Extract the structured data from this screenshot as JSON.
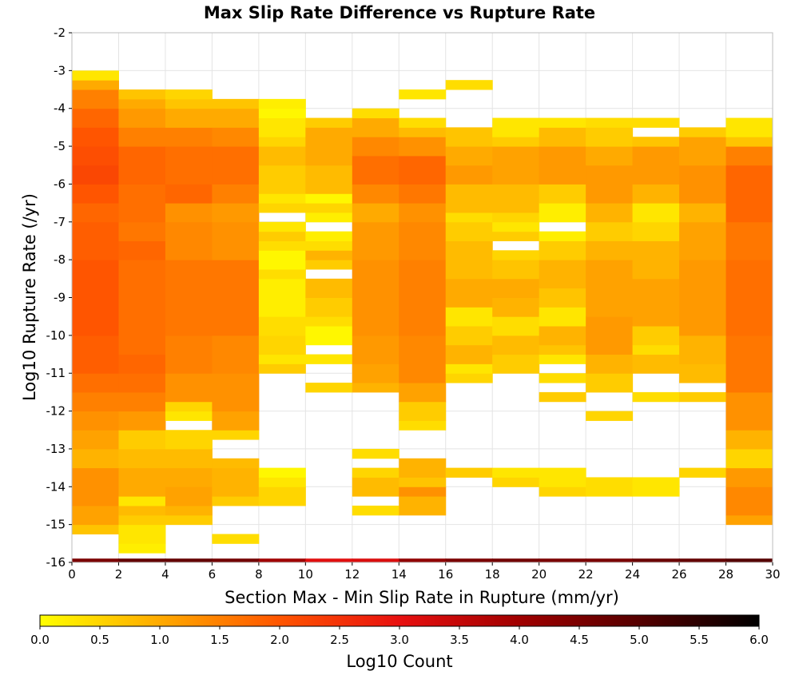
{
  "chart_data": {
    "type": "heatmap",
    "title": "Max Slip Rate Difference vs Rupture Rate",
    "xlabel": "Section Max - Min Slip Rate in Rupture (mm/yr)",
    "ylabel": "Log10 Rupture Rate (/yr)",
    "xlim": [
      0,
      30
    ],
    "ylim": [
      -16,
      -2
    ],
    "x_ticks": [
      0,
      2,
      4,
      6,
      8,
      10,
      12,
      14,
      16,
      18,
      20,
      22,
      24,
      26,
      28,
      30
    ],
    "y_ticks": [
      -2,
      -3,
      -4,
      -5,
      -6,
      -7,
      -8,
      -9,
      -10,
      -11,
      -12,
      -13,
      -14,
      -15,
      -16
    ],
    "x_bin_width": 2,
    "y_bin_height": 0.25,
    "grid": true,
    "colorbar": {
      "label": "Log10 Count",
      "range": [
        0,
        6
      ],
      "ticks": [
        "0.0",
        "0.5",
        "1.0",
        "1.5",
        "2.0",
        "2.5",
        "3.0",
        "3.5",
        "4.0",
        "4.5",
        "5.0",
        "5.5",
        "6.0"
      ],
      "placement": "bottom",
      "colors": [
        "#ffff00",
        "#ffaa00",
        "#ff5500",
        "#e81010",
        "#a00000",
        "#550000",
        "#000000"
      ]
    },
    "bottom_row_values": [
      4.5,
      4.8,
      4.8,
      4.6,
      4.0,
      3.1,
      3.2,
      4.2,
      4.5,
      4.6,
      4.5,
      4.5,
      4.7,
      4.8,
      5.0
    ],
    "cells_description": "per-column lists of [y_low, y_high, log10_count] segments",
    "columns": [
      [
        [
          -15.25,
          -15.0,
          0.7
        ],
        [
          -15.0,
          -14.5,
          1.1
        ],
        [
          -14.5,
          -13.5,
          1.3
        ],
        [
          -13.5,
          -13.0,
          0.9
        ],
        [
          -13.0,
          -12.5,
          1.1
        ],
        [
          -12.5,
          -12.0,
          1.3
        ],
        [
          -12.0,
          -11.5,
          1.5
        ],
        [
          -11.5,
          -11.0,
          1.7
        ],
        [
          -11.0,
          -10.0,
          1.9
        ],
        [
          -10.0,
          -8.0,
          2.0
        ],
        [
          -8.0,
          -7.0,
          1.9
        ],
        [
          -7.0,
          -6.5,
          1.8
        ],
        [
          -6.5,
          -6.0,
          2.0
        ],
        [
          -6.0,
          -5.5,
          2.2
        ],
        [
          -5.5,
          -5.0,
          2.1
        ],
        [
          -5.0,
          -4.5,
          2.0
        ],
        [
          -4.5,
          -4.0,
          1.8
        ],
        [
          -4.0,
          -3.5,
          1.5
        ],
        [
          -3.5,
          -3.25,
          1.0
        ],
        [
          -3.25,
          -3.0,
          0.3
        ]
      ],
      [
        [
          -15.75,
          -15.5,
          0.2
        ],
        [
          -15.5,
          -15.0,
          0.3
        ],
        [
          -15.0,
          -14.75,
          0.6
        ],
        [
          -14.75,
          -14.5,
          0.8
        ],
        [
          -14.5,
          -14.25,
          0.3
        ],
        [
          -14.25,
          -13.5,
          1.0
        ],
        [
          -13.5,
          -13.0,
          0.8
        ],
        [
          -13.0,
          -12.5,
          0.6
        ],
        [
          -12.5,
          -12.0,
          1.2
        ],
        [
          -12.0,
          -11.5,
          1.5
        ],
        [
          -11.5,
          -11.0,
          1.7
        ],
        [
          -11.0,
          -10.5,
          1.8
        ],
        [
          -10.5,
          -8.0,
          1.7
        ],
        [
          -8.0,
          -7.5,
          1.8
        ],
        [
          -7.5,
          -7.0,
          1.6
        ],
        [
          -7.0,
          -6.0,
          1.7
        ],
        [
          -6.0,
          -5.0,
          1.8
        ],
        [
          -5.0,
          -4.5,
          1.5
        ],
        [
          -4.5,
          -4.0,
          1.2
        ],
        [
          -4.0,
          -3.75,
          1.0
        ],
        [
          -3.75,
          -3.5,
          0.7
        ]
      ],
      [
        [
          -15.0,
          -14.75,
          0.6
        ],
        [
          -14.75,
          -14.5,
          0.9
        ],
        [
          -14.5,
          -14.0,
          1.1
        ],
        [
          -14.0,
          -13.5,
          1.0
        ],
        [
          -13.5,
          -13.0,
          0.8
        ],
        [
          -13.0,
          -12.5,
          0.5
        ],
        [
          -12.25,
          -12.0,
          0.3
        ],
        [
          -12.0,
          -11.75,
          0.5
        ],
        [
          -11.75,
          -11.0,
          1.3
        ],
        [
          -11.0,
          -10.0,
          1.5
        ],
        [
          -10.0,
          -8.0,
          1.6
        ],
        [
          -8.0,
          -7.0,
          1.4
        ],
        [
          -7.0,
          -6.5,
          1.3
        ],
        [
          -6.5,
          -6.0,
          1.8
        ],
        [
          -6.0,
          -5.0,
          1.7
        ],
        [
          -5.0,
          -4.5,
          1.5
        ],
        [
          -4.5,
          -4.0,
          1.0
        ],
        [
          -4.0,
          -3.75,
          0.7
        ],
        [
          -3.75,
          -3.5,
          0.5
        ]
      ],
      [
        [
          -15.5,
          -15.25,
          0.4
        ],
        [
          -14.5,
          -14.25,
          0.6
        ],
        [
          -14.25,
          -13.5,
          0.9
        ],
        [
          -13.5,
          -13.25,
          0.8
        ],
        [
          -12.75,
          -12.5,
          0.5
        ],
        [
          -12.5,
          -12.0,
          1.1
        ],
        [
          -12.0,
          -11.0,
          1.3
        ],
        [
          -11.0,
          -10.0,
          1.4
        ],
        [
          -10.0,
          -8.0,
          1.6
        ],
        [
          -8.0,
          -7.0,
          1.3
        ],
        [
          -7.0,
          -6.5,
          1.2
        ],
        [
          -6.5,
          -6.0,
          1.5
        ],
        [
          -6.0,
          -5.0,
          1.7
        ],
        [
          -5.0,
          -4.5,
          1.4
        ],
        [
          -4.5,
          -4.0,
          1.0
        ],
        [
          -4.0,
          -3.75,
          0.7
        ]
      ],
      [
        [
          -14.5,
          -14.0,
          0.5
        ],
        [
          -14.0,
          -13.75,
          0.3
        ],
        [
          -13.75,
          -13.5,
          0.1
        ],
        [
          -11.0,
          -10.75,
          0.6
        ],
        [
          -10.75,
          -10.5,
          0.3
        ],
        [
          -10.5,
          -10.0,
          0.5
        ],
        [
          -10.0,
          -9.5,
          0.4
        ],
        [
          -9.5,
          -8.5,
          0.2
        ],
        [
          -8.5,
          -8.25,
          0.4
        ],
        [
          -8.25,
          -7.75,
          0.1
        ],
        [
          -7.75,
          -7.5,
          0.4
        ],
        [
          -7.5,
          -7.25,
          0.6
        ],
        [
          -7.25,
          -7.0,
          0.3
        ],
        [
          -6.75,
          -6.5,
          0.5
        ],
        [
          -6.5,
          -6.25,
          0.3
        ],
        [
          -6.25,
          -5.5,
          0.6
        ],
        [
          -5.5,
          -5.0,
          0.8
        ],
        [
          -5.0,
          -4.75,
          0.5
        ],
        [
          -4.75,
          -4.25,
          0.3
        ],
        [
          -4.25,
          -4.0,
          0.1
        ],
        [
          -4.0,
          -3.75,
          0.2
        ]
      ],
      [
        [
          -11.5,
          -11.25,
          0.5
        ],
        [
          -10.75,
          -10.5,
          0.3
        ],
        [
          -10.25,
          -9.75,
          0.1
        ],
        [
          -9.75,
          -9.5,
          0.4
        ],
        [
          -9.5,
          -9.0,
          0.6
        ],
        [
          -9.0,
          -8.5,
          0.8
        ],
        [
          -8.25,
          -8.0,
          0.6
        ],
        [
          -8.0,
          -7.75,
          0.9
        ],
        [
          -7.75,
          -7.5,
          0.4
        ],
        [
          -7.5,
          -7.25,
          0.2
        ],
        [
          -7.0,
          -6.75,
          0.2
        ],
        [
          -6.75,
          -6.5,
          0.5
        ],
        [
          -6.5,
          -6.25,
          0.1
        ],
        [
          -6.25,
          -5.5,
          0.8
        ],
        [
          -5.5,
          -4.5,
          1.0
        ],
        [
          -4.5,
          -4.25,
          0.6
        ]
      ],
      [
        [
          -14.75,
          -14.5,
          0.4
        ],
        [
          -14.25,
          -13.75,
          0.8
        ],
        [
          -13.75,
          -13.5,
          0.5
        ],
        [
          -13.25,
          -13.0,
          0.4
        ],
        [
          -11.5,
          -11.25,
          0.9
        ],
        [
          -11.25,
          -10.75,
          1.1
        ],
        [
          -10.75,
          -10.0,
          1.2
        ],
        [
          -10.0,
          -8.0,
          1.3
        ],
        [
          -8.0,
          -7.0,
          1.2
        ],
        [
          -7.0,
          -6.5,
          1.0
        ],
        [
          -6.5,
          -6.0,
          1.4
        ],
        [
          -6.0,
          -5.25,
          1.7
        ],
        [
          -5.25,
          -4.75,
          1.4
        ],
        [
          -4.75,
          -4.25,
          1.0
        ],
        [
          -4.25,
          -4.0,
          0.4
        ]
      ],
      [
        [
          -14.75,
          -14.25,
          0.9
        ],
        [
          -14.25,
          -14.0,
          1.3
        ],
        [
          -14.0,
          -13.75,
          0.7
        ],
        [
          -13.75,
          -13.25,
          0.9
        ],
        [
          -12.5,
          -12.25,
          0.4
        ],
        [
          -12.25,
          -11.75,
          0.6
        ],
        [
          -11.75,
          -11.25,
          1.1
        ],
        [
          -11.25,
          -10.0,
          1.4
        ],
        [
          -10.0,
          -8.0,
          1.5
        ],
        [
          -8.0,
          -7.0,
          1.4
        ],
        [
          -7.0,
          -6.5,
          1.3
        ],
        [
          -6.5,
          -6.0,
          1.6
        ],
        [
          -6.0,
          -5.25,
          1.8
        ],
        [
          -5.25,
          -4.75,
          1.3
        ],
        [
          -4.75,
          -4.5,
          0.8
        ],
        [
          -4.5,
          -4.25,
          0.4
        ],
        [
          -3.75,
          -3.5,
          0.3
        ]
      ],
      [
        [
          -13.75,
          -13.5,
          0.6
        ],
        [
          -11.25,
          -11.0,
          0.5
        ],
        [
          -11.0,
          -10.75,
          0.3
        ],
        [
          -10.75,
          -10.25,
          0.9
        ],
        [
          -10.25,
          -9.75,
          0.6
        ],
        [
          -9.75,
          -9.25,
          0.3
        ],
        [
          -9.25,
          -8.5,
          1.0
        ],
        [
          -8.5,
          -7.5,
          0.8
        ],
        [
          -7.5,
          -7.0,
          0.6
        ],
        [
          -7.0,
          -6.75,
          0.4
        ],
        [
          -6.75,
          -6.0,
          0.8
        ],
        [
          -6.0,
          -5.5,
          1.2
        ],
        [
          -5.5,
          -5.0,
          1.0
        ],
        [
          -5.0,
          -4.5,
          0.7
        ],
        [
          -3.5,
          -3.25,
          0.4
        ]
      ],
      [
        [
          -14.0,
          -13.75,
          0.5
        ],
        [
          -13.75,
          -13.5,
          0.3
        ],
        [
          -11.0,
          -10.5,
          0.6
        ],
        [
          -10.5,
          -10.0,
          0.8
        ],
        [
          -10.0,
          -9.5,
          0.4
        ],
        [
          -9.5,
          -9.0,
          0.9
        ],
        [
          -9.0,
          -8.5,
          1.0
        ],
        [
          -8.5,
          -8.0,
          0.7
        ],
        [
          -8.0,
          -7.75,
          0.5
        ],
        [
          -7.5,
          -7.25,
          0.6
        ],
        [
          -7.25,
          -7.0,
          0.3
        ],
        [
          -7.0,
          -6.75,
          0.5
        ],
        [
          -6.75,
          -6.0,
          0.8
        ],
        [
          -6.0,
          -5.0,
          1.1
        ],
        [
          -5.0,
          -4.75,
          0.6
        ],
        [
          -4.75,
          -4.25,
          0.3
        ]
      ],
      [
        [
          -14.25,
          -14.0,
          0.5
        ],
        [
          -14.0,
          -13.5,
          0.3
        ],
        [
          -11.75,
          -11.5,
          0.6
        ],
        [
          -11.25,
          -11.0,
          0.4
        ],
        [
          -10.75,
          -10.5,
          0.3
        ],
        [
          -10.5,
          -10.25,
          0.7
        ],
        [
          -10.25,
          -9.75,
          0.9
        ],
        [
          -9.75,
          -9.25,
          0.3
        ],
        [
          -9.25,
          -8.75,
          0.7
        ],
        [
          -8.75,
          -8.0,
          0.9
        ],
        [
          -8.0,
          -7.5,
          0.6
        ],
        [
          -7.5,
          -7.25,
          0.2
        ],
        [
          -7.0,
          -6.5,
          0.2
        ],
        [
          -6.5,
          -6.0,
          0.6
        ],
        [
          -6.0,
          -5.0,
          1.2
        ],
        [
          -5.0,
          -4.5,
          0.8
        ],
        [
          -4.5,
          -4.25,
          0.3
        ]
      ],
      [
        [
          -14.25,
          -13.75,
          0.4
        ],
        [
          -12.25,
          -12.0,
          0.5
        ],
        [
          -11.5,
          -11.0,
          0.6
        ],
        [
          -11.0,
          -10.5,
          0.9
        ],
        [
          -10.5,
          -9.5,
          1.2
        ],
        [
          -9.5,
          -8.0,
          1.1
        ],
        [
          -8.0,
          -7.5,
          0.9
        ],
        [
          -7.5,
          -7.0,
          0.6
        ],
        [
          -7.0,
          -6.5,
          0.9
        ],
        [
          -6.5,
          -5.5,
          1.2
        ],
        [
          -5.5,
          -5.0,
          1.0
        ],
        [
          -5.0,
          -4.5,
          0.6
        ],
        [
          -4.5,
          -4.25,
          0.4
        ]
      ],
      [
        [
          -14.25,
          -13.75,
          0.3
        ],
        [
          -11.75,
          -11.5,
          0.4
        ],
        [
          -11.0,
          -10.5,
          0.8
        ],
        [
          -10.5,
          -10.25,
          0.4
        ],
        [
          -10.25,
          -9.75,
          0.6
        ],
        [
          -9.75,
          -8.5,
          1.1
        ],
        [
          -8.5,
          -7.5,
          0.9
        ],
        [
          -7.5,
          -7.0,
          0.5
        ],
        [
          -7.0,
          -6.5,
          0.3
        ],
        [
          -6.5,
          -6.0,
          0.9
        ],
        [
          -6.0,
          -5.0,
          1.2
        ],
        [
          -5.0,
          -4.75,
          0.7
        ],
        [
          -4.5,
          -4.25,
          0.4
        ]
      ],
      [
        [
          -13.75,
          -13.5,
          0.5
        ],
        [
          -11.75,
          -11.5,
          0.6
        ],
        [
          -11.25,
          -10.75,
          0.8
        ],
        [
          -10.75,
          -10.0,
          0.9
        ],
        [
          -10.0,
          -8.0,
          1.2
        ],
        [
          -8.0,
          -7.0,
          1.1
        ],
        [
          -7.0,
          -6.5,
          0.9
        ],
        [
          -6.5,
          -5.5,
          1.3
        ],
        [
          -5.5,
          -4.75,
          1.1
        ],
        [
          -4.75,
          -4.5,
          0.6
        ]
      ],
      [
        [
          -15.0,
          -14.75,
          1.1
        ],
        [
          -14.75,
          -14.0,
          1.4
        ],
        [
          -14.0,
          -13.5,
          1.2
        ],
        [
          -13.5,
          -13.0,
          0.5
        ],
        [
          -13.0,
          -12.5,
          0.9
        ],
        [
          -12.5,
          -11.5,
          1.3
        ],
        [
          -11.5,
          -10.0,
          1.6
        ],
        [
          -10.0,
          -8.0,
          1.7
        ],
        [
          -8.0,
          -7.0,
          1.6
        ],
        [
          -7.0,
          -5.5,
          1.8
        ],
        [
          -5.5,
          -5.0,
          1.5
        ],
        [
          -5.0,
          -4.75,
          0.7
        ],
        [
          -4.75,
          -4.25,
          0.3
        ]
      ]
    ]
  }
}
